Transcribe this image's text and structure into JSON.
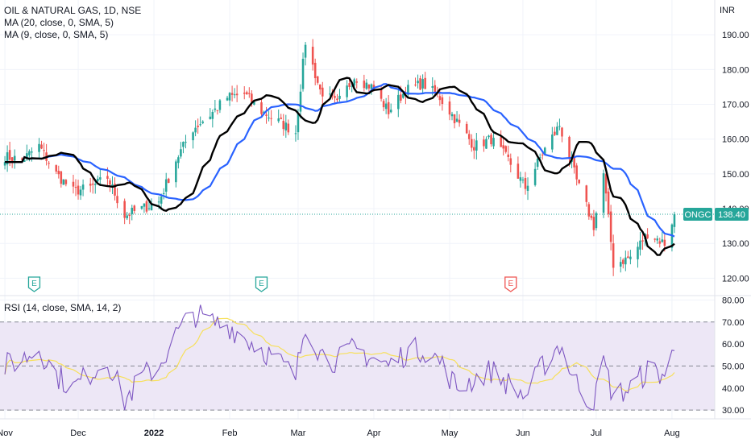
{
  "header": {
    "title": "OIL & NATURAL GAS, 1D, NSE",
    "ma20_label": "MA (20, close, 0, SMA, 5)",
    "ma9_label": "MA (9, close, 0, SMA, 5)",
    "currency": "INR"
  },
  "rsi_label": "RSI (14, close, SMA, 14, 2)",
  "price_tag": {
    "symbol": "ONGC",
    "value": "138.40"
  },
  "earnings_markers": [
    {
      "date": "2021-11-13",
      "label": "E",
      "type": "positive"
    },
    {
      "date": "2022-02-14",
      "label": "E",
      "type": "positive"
    },
    {
      "date": "2022-05-27",
      "label": "E",
      "type": "negative"
    }
  ],
  "colors": {
    "up": "#26a69a",
    "down": "#ef5350",
    "ma20": "#2962ff",
    "ma9": "#000000",
    "rsi": "#7e57c2",
    "rsi_ma": "#f7e05a",
    "rsi_band": "#ede7f6",
    "price_tag": "#26a69a"
  },
  "chart_data": {
    "type": "candlestick",
    "x_labels": [
      {
        "date": "2021-11-01",
        "label": "Nov"
      },
      {
        "date": "2021-12-01",
        "label": "Dec"
      },
      {
        "date": "2022-01-01",
        "label": "2022"
      },
      {
        "date": "2022-02-01",
        "label": "Feb"
      },
      {
        "date": "2022-03-01",
        "label": "Mar"
      },
      {
        "date": "2022-04-01",
        "label": "Apr"
      },
      {
        "date": "2022-05-02",
        "label": "May"
      },
      {
        "date": "2022-06-01",
        "label": "Jun"
      },
      {
        "date": "2022-07-01",
        "label": "Jul"
      },
      {
        "date": "2022-08-01",
        "label": "Aug"
      }
    ],
    "date_range": [
      "2021-10-30",
      "2022-08-03"
    ],
    "price_axis": {
      "min": 115,
      "max": 200,
      "ticks": [
        120,
        130,
        140,
        150,
        160,
        170,
        180,
        190
      ]
    },
    "rsi_axis": {
      "min": 26,
      "max": 82,
      "ticks": [
        30,
        40,
        50,
        60,
        70,
        80
      ],
      "bands": [
        30,
        50,
        70
      ]
    },
    "last_price": 138.4,
    "price_anchors": [
      [
        "2021-11-01",
        155
      ],
      [
        "2021-11-08",
        154
      ],
      [
        "2021-11-15",
        158
      ],
      [
        "2021-11-22",
        150
      ],
      [
        "2021-11-29",
        145
      ],
      [
        "2021-12-06",
        146
      ],
      [
        "2021-12-13",
        149
      ],
      [
        "2021-12-20",
        138
      ],
      [
        "2021-12-27",
        140
      ],
      [
        "2022-01-03",
        142
      ],
      [
        "2022-01-10",
        154
      ],
      [
        "2022-01-17",
        163
      ],
      [
        "2022-01-24",
        167
      ],
      [
        "2022-01-31",
        172
      ],
      [
        "2022-02-07",
        173
      ],
      [
        "2022-02-14",
        168
      ],
      [
        "2022-02-21",
        165
      ],
      [
        "2022-02-28",
        162
      ],
      [
        "2022-03-04",
        188
      ],
      [
        "2022-03-10",
        174
      ],
      [
        "2022-03-17",
        170
      ],
      [
        "2022-03-24",
        178
      ],
      [
        "2022-03-31",
        175
      ],
      [
        "2022-04-07",
        168
      ],
      [
        "2022-04-14",
        174
      ],
      [
        "2022-04-21",
        176
      ],
      [
        "2022-04-28",
        172
      ],
      [
        "2022-05-05",
        165
      ],
      [
        "2022-05-12",
        158
      ],
      [
        "2022-05-19",
        160
      ],
      [
        "2022-05-26",
        154
      ],
      [
        "2022-06-02",
        146
      ],
      [
        "2022-06-09",
        156
      ],
      [
        "2022-06-16",
        164
      ],
      [
        "2022-06-23",
        148
      ],
      [
        "2022-06-30",
        135
      ],
      [
        "2022-07-04",
        150
      ],
      [
        "2022-07-08",
        124
      ],
      [
        "2022-07-15",
        126
      ],
      [
        "2022-07-22",
        133
      ],
      [
        "2022-07-29",
        130
      ],
      [
        "2022-08-02",
        138.4
      ]
    ],
    "rsi_anchors": [
      [
        "2021-11-01",
        50
      ],
      [
        "2021-11-08",
        53
      ],
      [
        "2021-11-15",
        58
      ],
      [
        "2021-11-22",
        46
      ],
      [
        "2021-11-29",
        40
      ],
      [
        "2021-12-06",
        47
      ],
      [
        "2021-12-13",
        53
      ],
      [
        "2021-12-20",
        34
      ],
      [
        "2021-12-27",
        45
      ],
      [
        "2022-01-03",
        50
      ],
      [
        "2022-01-10",
        64
      ],
      [
        "2022-01-17",
        74
      ],
      [
        "2022-01-24",
        70
      ],
      [
        "2022-02-01",
        68
      ],
      [
        "2022-02-07",
        63
      ],
      [
        "2022-02-14",
        58
      ],
      [
        "2022-02-21",
        52
      ],
      [
        "2022-02-28",
        45
      ],
      [
        "2022-03-04",
        70
      ],
      [
        "2022-03-10",
        56
      ],
      [
        "2022-03-17",
        52
      ],
      [
        "2022-03-24",
        58
      ],
      [
        "2022-03-31",
        54
      ],
      [
        "2022-04-07",
        50
      ],
      [
        "2022-04-14",
        56
      ],
      [
        "2022-04-21",
        58
      ],
      [
        "2022-04-28",
        52
      ],
      [
        "2022-05-05",
        40
      ],
      [
        "2022-05-12",
        44
      ],
      [
        "2022-05-19",
        48
      ],
      [
        "2022-05-26",
        42
      ],
      [
        "2022-06-02",
        36
      ],
      [
        "2022-06-09",
        50
      ],
      [
        "2022-06-16",
        60
      ],
      [
        "2022-06-23",
        42
      ],
      [
        "2022-06-30",
        32
      ],
      [
        "2022-07-04",
        52
      ],
      [
        "2022-07-08",
        36
      ],
      [
        "2022-07-15",
        40
      ],
      [
        "2022-07-22",
        48
      ],
      [
        "2022-07-29",
        46
      ],
      [
        "2022-08-02",
        57
      ]
    ]
  }
}
